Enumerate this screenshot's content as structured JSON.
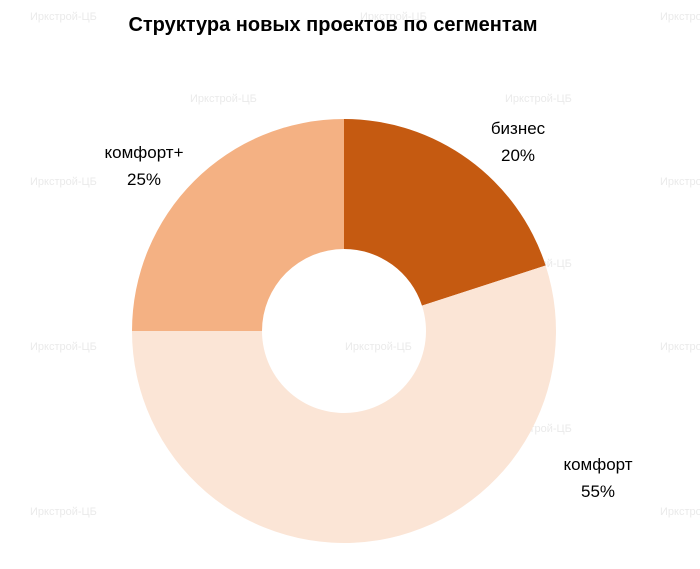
{
  "chart_data": {
    "type": "pie",
    "title": "Структура новых проектов по сегментам",
    "categories": [
      "бизнес",
      "комфорт",
      "комфорт+"
    ],
    "values": [
      20,
      55,
      25
    ],
    "value_labels": [
      "20%",
      "55%",
      "25%"
    ],
    "colors": [
      "#c55a11",
      "#fbe5d6",
      "#f4b183"
    ],
    "donut": true,
    "legend": "none"
  },
  "watermark": {
    "text": "Иркстрой-ЦБ"
  }
}
